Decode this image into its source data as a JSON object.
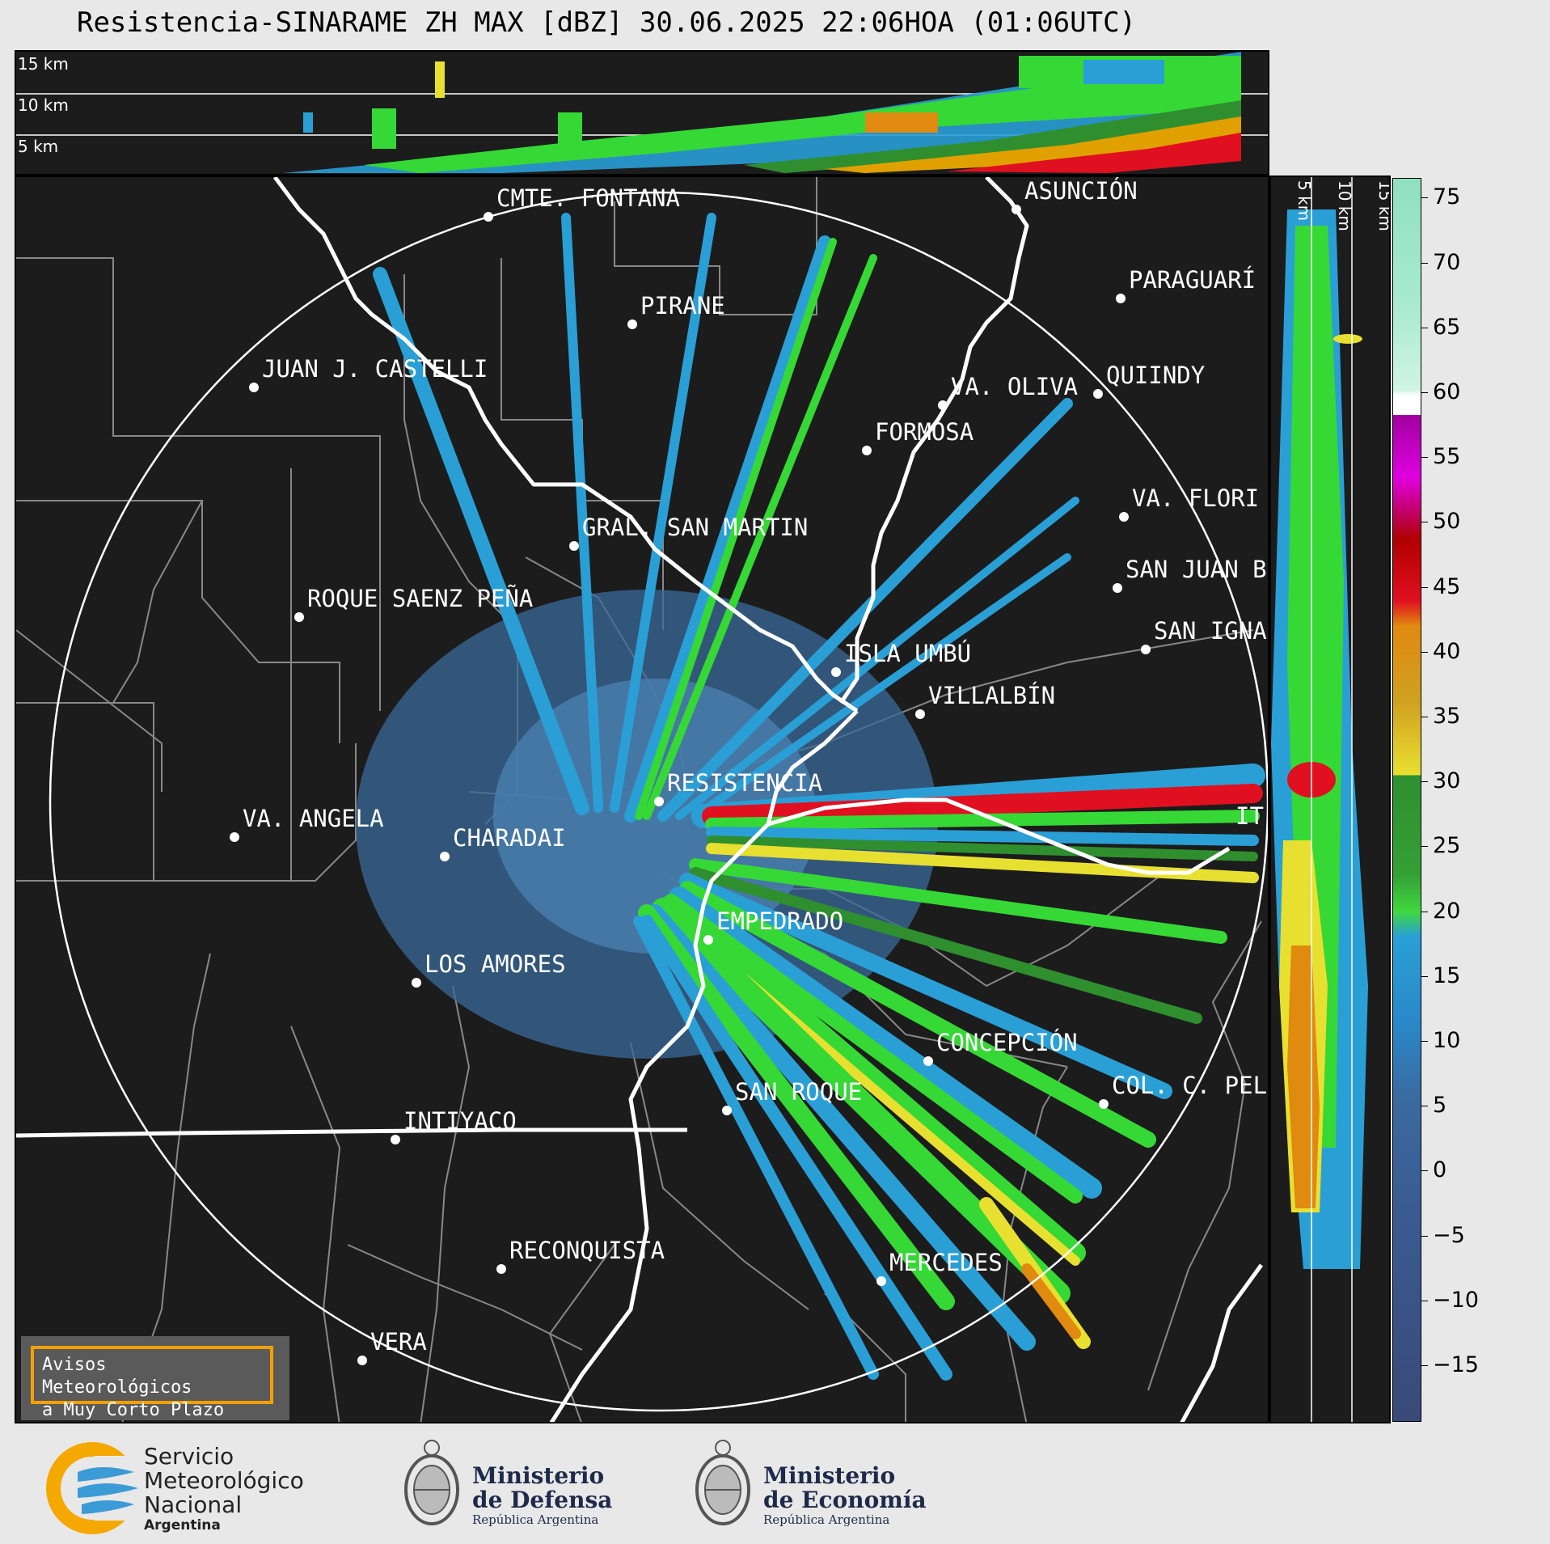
{
  "title": "Resistencia-SINARAME ZH MAX [dBZ] 30.06.2025 22:06HOA (01:06UTC)",
  "top_panel": {
    "height_labels": [
      "15 km",
      "10 km",
      "5 km"
    ]
  },
  "side_panel": {
    "height_labels": [
      "5 km",
      "10 km",
      "15 km"
    ]
  },
  "colorbar": {
    "unit": "dBZ",
    "ticks": [
      "75",
      "70",
      "65",
      "60",
      "55",
      "50",
      "45",
      "40",
      "35",
      "30",
      "25",
      "20",
      "15",
      "10",
      "5",
      "0",
      "−5",
      "−10",
      "−15"
    ]
  },
  "map": {
    "cities": [
      {
        "name": "CMTE. FONTANA"
      },
      {
        "name": "ASUNCIÓN"
      },
      {
        "name": "PARAGUARÍ"
      },
      {
        "name": "PIRANE"
      },
      {
        "name": "JUAN J. CASTELLI"
      },
      {
        "name": "VA. OLIVA"
      },
      {
        "name": "QUIINDY"
      },
      {
        "name": "FORMOSA"
      },
      {
        "name": "VA. FLORI"
      },
      {
        "name": "GRAL. SAN MARTIN"
      },
      {
        "name": "SAN JUAN B"
      },
      {
        "name": "ROQUE SAENZ PEÑA"
      },
      {
        "name": "SAN IGNA"
      },
      {
        "name": "ISLA UMBÚ"
      },
      {
        "name": "VILLALBÍN"
      },
      {
        "name": "RESISTENCIA"
      },
      {
        "name": "IT"
      },
      {
        "name": "VA. ANGELA"
      },
      {
        "name": "CHARADAI"
      },
      {
        "name": "EMPEDRADO"
      },
      {
        "name": "LOS AMORES"
      },
      {
        "name": "CONCEPCIÓN"
      },
      {
        "name": "COL. C. PEL"
      },
      {
        "name": "SAN ROQUE"
      },
      {
        "name": "INTIYACO"
      },
      {
        "name": "RECONQUISTA"
      },
      {
        "name": "MERCEDES"
      },
      {
        "name": "VERA"
      }
    ]
  },
  "warning_box": {
    "line1": "Avisos Meteorológicos",
    "line2": "a Muy Corto Plazo"
  },
  "footer": {
    "smn": [
      "Servicio",
      "Meteorológico",
      "Nacional",
      "Argentina"
    ],
    "defensa": [
      "Ministerio",
      "de Defensa",
      "República Argentina"
    ],
    "economia": [
      "Ministerio",
      "de Economía",
      "República Argentina"
    ]
  }
}
